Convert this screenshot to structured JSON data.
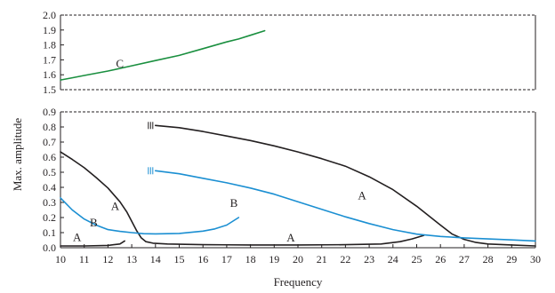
{
  "colors": {
    "axis": "#231f20",
    "series_A": "#231f20",
    "series_B": "#1b8fd2",
    "series_C": "#1a8f3f"
  },
  "chart_data": {
    "type": "line",
    "xlabel": "Frequency",
    "ylabel": "Max. amplitude",
    "xlim": [
      10,
      30
    ],
    "x_ticks": [
      10,
      11,
      12,
      13,
      14,
      15,
      16,
      17,
      18,
      19,
      20,
      21,
      22,
      23,
      24,
      25,
      26,
      27,
      28,
      29,
      30
    ],
    "grid": false,
    "panels": [
      {
        "id": "upper",
        "ylim": [
          1.5,
          2.0
        ],
        "y_ticks": [
          "1.5",
          "1.6",
          "1.7",
          "1.8",
          "1.9",
          "2.0"
        ],
        "series": [
          {
            "name": "C",
            "color": "#1a8f3f",
            "points": [
              [
                10,
                1.565
              ],
              [
                10.5,
                1.58
              ],
              [
                11,
                1.595
              ],
              [
                12,
                1.625
              ],
              [
                13,
                1.66
              ],
              [
                14,
                1.695
              ],
              [
                15,
                1.73
              ],
              [
                16,
                1.775
              ],
              [
                17,
                1.82
              ],
              [
                17.5,
                1.84
              ],
              [
                18,
                1.865
              ],
              [
                18.6,
                1.895
              ]
            ]
          }
        ],
        "labels": [
          {
            "text": "C",
            "x": 12.5,
            "y": 1.65
          }
        ]
      },
      {
        "id": "lower",
        "ylim": [
          0,
          0.9
        ],
        "y_ticks": [
          "0.0",
          "0.1",
          "0.2",
          "0.3",
          "0.4",
          "0.5",
          "0.6",
          "0.7",
          "0.8",
          "0.9"
        ],
        "series": [
          {
            "name": "A",
            "color": "#231f20",
            "points": [
              [
                10,
                0.635
              ],
              [
                10.5,
                0.585
              ],
              [
                11,
                0.53
              ],
              [
                11.5,
                0.465
              ],
              [
                12,
                0.395
              ],
              [
                12.5,
                0.305
              ],
              [
                12.8,
                0.235
              ],
              [
                13,
                0.175
              ],
              [
                13.2,
                0.115
              ],
              [
                13.4,
                0.065
              ],
              [
                13.6,
                0.04
              ],
              [
                13.9,
                0.03
              ],
              [
                14.5,
                0.025
              ],
              [
                16,
                0.02
              ],
              [
                18,
                0.018
              ],
              [
                20,
                0.018
              ],
              [
                22,
                0.02
              ],
              [
                23.5,
                0.025
              ],
              [
                24.3,
                0.04
              ],
              [
                24.8,
                0.058
              ],
              [
                25.3,
                0.082
              ]
            ]
          },
          {
            "name": "A",
            "color": "#231f20",
            "points": [
              [
                10,
                0.012
              ],
              [
                11,
                0.012
              ],
              [
                12,
                0.015
              ],
              [
                12.5,
                0.025
              ],
              [
                12.7,
                0.045
              ]
            ]
          },
          {
            "name": "A",
            "color": "#231f20",
            "points": [
              [
                14,
                0.81
              ],
              [
                15,
                0.795
              ],
              [
                16,
                0.77
              ],
              [
                17,
                0.74
              ],
              [
                18,
                0.71
              ],
              [
                19,
                0.675
              ],
              [
                20,
                0.635
              ],
              [
                21,
                0.59
              ],
              [
                22,
                0.54
              ],
              [
                23,
                0.47
              ],
              [
                24,
                0.385
              ],
              [
                25,
                0.275
              ],
              [
                25.6,
                0.2
              ],
              [
                26,
                0.15
              ],
              [
                26.5,
                0.09
              ],
              [
                27,
                0.055
              ],
              [
                27.5,
                0.035
              ],
              [
                28,
                0.025
              ],
              [
                29,
                0.018
              ],
              [
                30,
                0.012
              ]
            ]
          },
          {
            "name": "B",
            "color": "#1b8fd2",
            "points": [
              [
                10,
                0.33
              ],
              [
                10.5,
                0.25
              ],
              [
                11,
                0.19
              ],
              [
                11.5,
                0.15
              ],
              [
                12,
                0.12
              ],
              [
                12.5,
                0.108
              ],
              [
                13,
                0.1
              ],
              [
                13.5,
                0.093
              ],
              [
                14,
                0.092
              ],
              [
                15,
                0.095
              ],
              [
                16,
                0.11
              ],
              [
                16.5,
                0.125
              ],
              [
                17,
                0.15
              ],
              [
                17.5,
                0.2
              ]
            ]
          },
          {
            "name": "B",
            "color": "#1b8fd2",
            "points": [
              [
                14,
                0.51
              ],
              [
                15,
                0.49
              ],
              [
                16,
                0.46
              ],
              [
                17,
                0.43
              ],
              [
                18,
                0.395
              ],
              [
                19,
                0.355
              ],
              [
                20,
                0.305
              ],
              [
                21,
                0.255
              ],
              [
                22,
                0.205
              ],
              [
                23,
                0.16
              ],
              [
                24,
                0.12
              ],
              [
                25,
                0.09
              ],
              [
                26,
                0.075
              ],
              [
                27,
                0.065
              ],
              [
                28,
                0.058
              ],
              [
                29,
                0.052
              ],
              [
                30,
                0.045
              ]
            ]
          }
        ],
        "labels": [
          {
            "text": "A",
            "x": 12.3,
            "y": 0.25
          },
          {
            "text": "B",
            "x": 11.4,
            "y": 0.14
          },
          {
            "text": "A",
            "x": 10.7,
            "y": 0.045
          },
          {
            "text": "B",
            "x": 17.3,
            "y": 0.27
          },
          {
            "text": "A",
            "x": 22.7,
            "y": 0.32
          },
          {
            "text": "A",
            "x": 19.7,
            "y": 0.04
          }
        ]
      }
    ]
  }
}
